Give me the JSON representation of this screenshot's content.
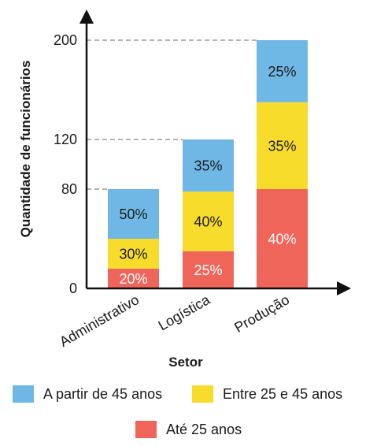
{
  "chart_data": {
    "type": "bar",
    "stacked": true,
    "categories": [
      "Administrativo",
      "Logística",
      "Produção"
    ],
    "totals": [
      80,
      120,
      200
    ],
    "series": [
      {
        "name": "Até 25 anos",
        "color": "#f0655a",
        "percent_labels": [
          "20%",
          "25%",
          "40%"
        ],
        "values": [
          16,
          30,
          80
        ]
      },
      {
        "name": "Entre 25 e 45 anos",
        "color": "#f8dc2c",
        "percent_labels": [
          "30%",
          "40%",
          "35%"
        ],
        "values": [
          24,
          48,
          70
        ]
      },
      {
        "name": "A partir de 45 anos",
        "color": "#6fb8e6",
        "percent_labels": [
          "50%",
          "35%",
          "25%"
        ],
        "values": [
          40,
          42,
          50
        ]
      }
    ],
    "yticks": [
      0,
      80,
      120,
      200
    ],
    "ylim": [
      0,
      200
    ],
    "xlabel": "Setor",
    "ylabel": "Quantidade de funcionários",
    "grid": false,
    "reference_lines": "dashed lines from y-axis at each bar total",
    "legend_placement": "bottom"
  },
  "legend": {
    "items": [
      {
        "label": "A partir de 45 anos",
        "color": "#6fb8e6"
      },
      {
        "label": "Entre 25 e 45 anos",
        "color": "#f8dc2c"
      },
      {
        "label": "Até 25 anos",
        "color": "#f0655a"
      }
    ]
  }
}
